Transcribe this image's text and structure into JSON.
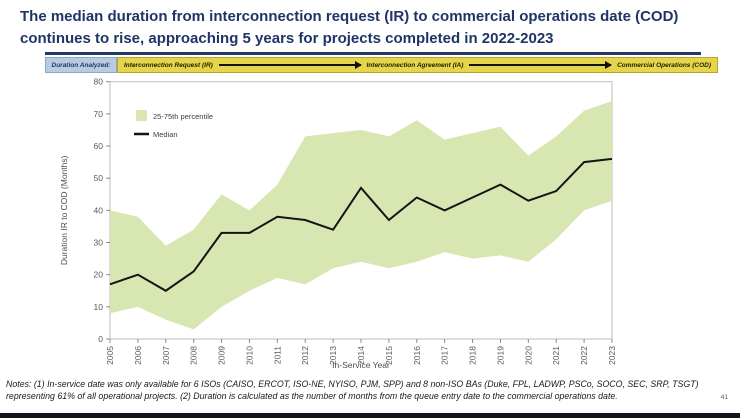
{
  "slide": {
    "title": "The median duration from interconnection request (IR) to commercial operations date (COD) continues to rise, approaching 5 years for projects completed in 2022-2023",
    "title_color": "#1f3566",
    "page_number": "41",
    "notes": "Notes: (1) In-service date was only available for 6 ISOs (CAISO, ERCOT, ISO-NE, NYISO, PJM, SPP) and 8 non-ISO BAs (Duke, FPL, LADWP, PSCo, SOCO, SEC, SRP, TSGT) representing 61% of all operational projects. (2) Duration is calculated as the number of months from the queue entry date to the commercial operations date."
  },
  "banner": {
    "label": "Duration Analyzed:",
    "label_bg": "#b9cbe2",
    "bar_bg": "#e5d54b",
    "stages": [
      "Interconnection Request (IR)",
      "Interconnection Agreement (IA)",
      "Commercial Operations (COD)"
    ]
  },
  "chart_data": {
    "type": "area",
    "title": "",
    "xlabel": "In-Service Year",
    "ylabel": "Duration IR to COD (Months)",
    "ylim": [
      0,
      80
    ],
    "ytick_step": 10,
    "grid": false,
    "legend_position": "upper-left-inside",
    "categories": [
      "2005",
      "2006",
      "2007",
      "2008",
      "2009",
      "2010",
      "2011",
      "2012",
      "2013",
      "2014",
      "2015",
      "2016",
      "2017",
      "2018",
      "2019",
      "2020",
      "2021",
      "2022",
      "2023"
    ],
    "series": [
      {
        "name": "25-75th percentile",
        "type": "band",
        "color": "#d8e6b2",
        "upper": [
          40,
          38,
          29,
          34,
          45,
          40,
          48,
          63,
          64,
          65,
          63,
          68,
          62,
          64,
          66,
          57,
          63,
          71,
          74
        ],
        "lower": [
          8,
          10,
          6,
          3,
          10,
          15,
          19,
          17,
          22,
          24,
          22,
          24,
          27,
          25,
          26,
          24,
          31,
          40,
          43
        ]
      },
      {
        "name": "Median",
        "type": "line",
        "color": "#141414",
        "values": [
          17,
          20,
          15,
          21,
          33,
          33,
          38,
          37,
          34,
          47,
          37,
          44,
          40,
          44,
          48,
          43,
          46,
          55,
          56
        ]
      }
    ]
  }
}
